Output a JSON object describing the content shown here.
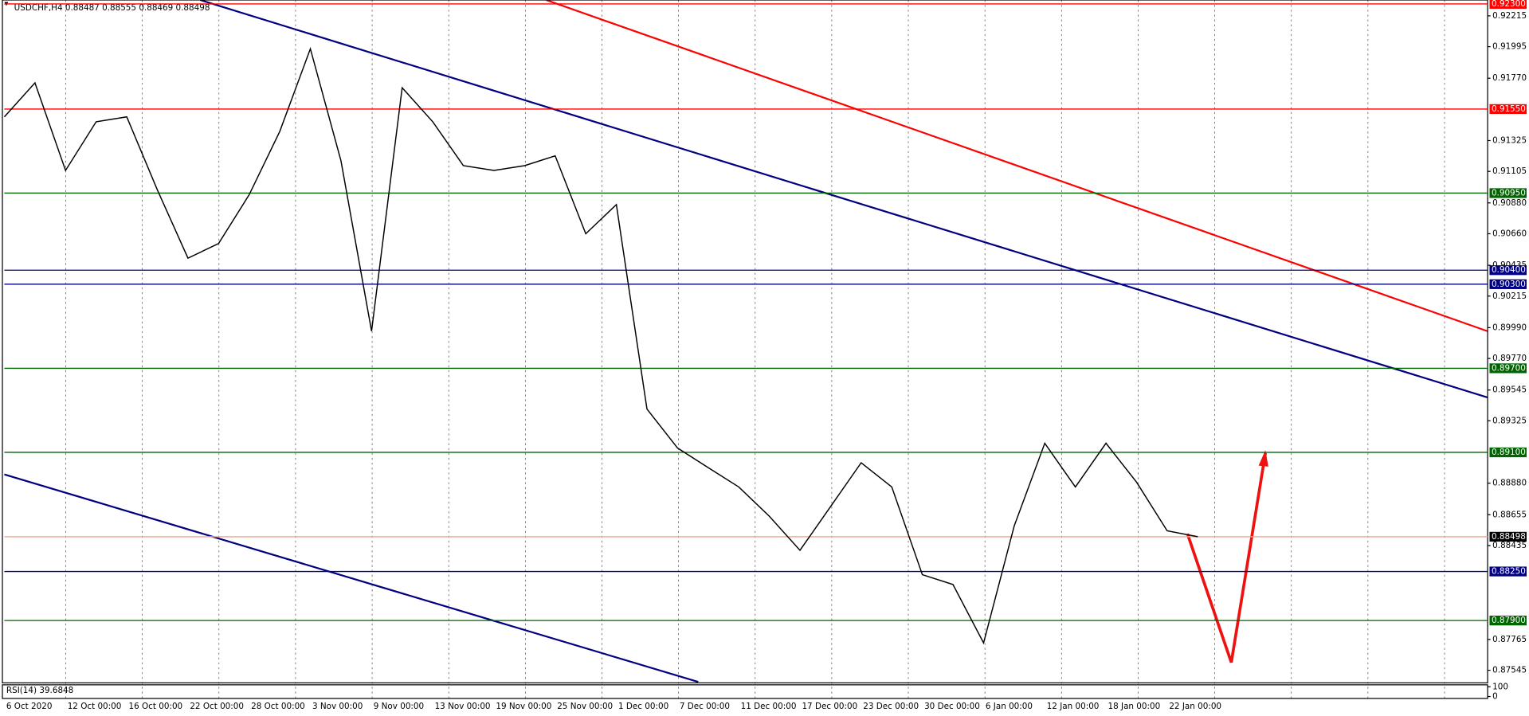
{
  "chart_data": {
    "type": "line",
    "title": "USDCHF,H4",
    "quote": [
      0.88487,
      0.88555,
      0.88469,
      0.88498
    ],
    "categories": [
      "6 Oct 2020",
      null,
      "12 Oct 00:00",
      null,
      "16 Oct 00:00",
      null,
      "22 Oct 00:00",
      null,
      "28 Oct 00:00",
      null,
      "3 Nov 00:00",
      null,
      "9 Nov 00:00",
      null,
      "13 Nov 00:00",
      null,
      "19 Nov 00:00",
      null,
      "25 Nov 00:00",
      null,
      "1 Dec 00:00",
      null,
      "7 Dec 00:00",
      null,
      "11 Dec 00:00",
      null,
      "17 Dec 00:00",
      null,
      "23 Dec 00:00",
      null,
      "30 Dec 00:00",
      null,
      "6 Jan 00:00",
      null,
      "12 Jan 00:00",
      null,
      "18 Jan 00:00",
      null,
      "22 Jan 00:00",
      null
    ],
    "values": [
      0.91494,
      0.91737,
      0.91112,
      0.91459,
      0.91494,
      0.90973,
      0.90486,
      0.9059,
      0.90938,
      0.9139,
      0.9198,
      0.91181,
      0.89965,
      0.91702,
      0.91459,
      0.91146,
      0.91112,
      0.91146,
      0.91216,
      0.9066,
      0.90868,
      0.89409,
      0.89131,
      0.88991,
      0.88853,
      0.88644,
      0.88401,
      0.88713,
      0.89026,
      0.88853,
      0.88227,
      0.88157,
      0.8774,
      0.88574,
      0.89165,
      0.88853,
      0.89165,
      0.88887,
      0.8854,
      0.88498
    ],
    "color": "#000000",
    "ylim": [
      0.87462,
      0.92328
    ],
    "yticks": [
      0.92215,
      0.91995,
      {
        "value": 0.9177,
        "label": "0.91770"
      },
      0.91325,
      0.91105,
      {
        "value": 0.9088,
        "label": "0.90880"
      },
      {
        "value": 0.9066,
        "label": "0.90660"
      },
      0.90435,
      0.90215,
      {
        "value": 0.8999,
        "label": "0.89990"
      },
      {
        "value": 0.8977,
        "label": "0.89770"
      },
      0.89545,
      0.89325,
      {
        "value": 0.8888,
        "label": "0.88880"
      },
      0.88655,
      0.88435,
      0.87765,
      0.87545
    ],
    "levels": [
      {
        "value": 0.923,
        "label": "0.92300",
        "color": "#ff0000"
      },
      {
        "value": 0.9155,
        "label": "0.91550",
        "color": "#ff0000"
      },
      {
        "value": 0.9095,
        "label": "0.90950",
        "color": "#006400"
      },
      {
        "value": 0.904,
        "label": "0.90400",
        "color": "#000080"
      },
      {
        "value": 0.903,
        "label": "0.90300",
        "color": "#000080"
      },
      {
        "value": 0.897,
        "label": "0.89700",
        "color": "#006400"
      },
      {
        "value": 0.891,
        "label": "0.89100",
        "color": "#006400"
      },
      {
        "value": 0.88498,
        "color": "#f4a58a"
      },
      {
        "value": 0.8825,
        "label": "0.88250",
        "color": "#000080"
      },
      {
        "value": 0.879,
        "label": "0.87900",
        "color": "#006400"
      }
    ],
    "indicator": {
      "label": "RSI(14) 39.6848",
      "ylim": [
        0,
        100
      ],
      "yticks": [
        100,
        0
      ]
    }
  }
}
